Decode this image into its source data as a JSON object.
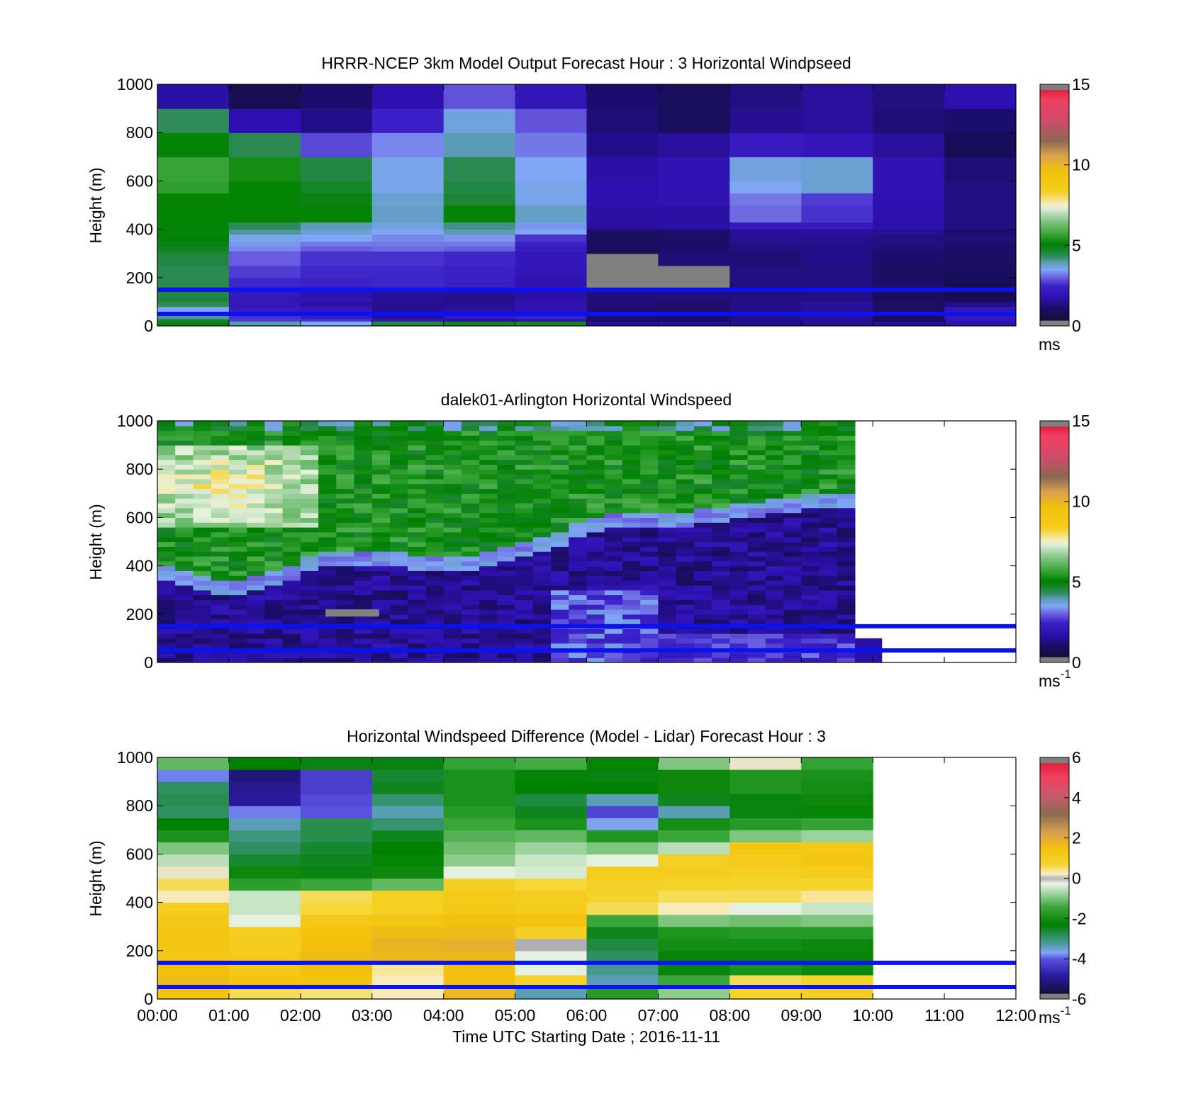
{
  "figure": {
    "xlabel": "Time UTC  Starting Date ; 2016-11-11",
    "x_ticks": [
      "00:00",
      "01:00",
      "02:00",
      "03:00",
      "04:00",
      "05:00",
      "06:00",
      "07:00",
      "08:00",
      "09:00",
      "10:00",
      "11:00",
      "12:00"
    ]
  },
  "chart_data": [
    {
      "type": "heatmap",
      "title": "HRRR-NCEP 3km Model Output   Forecast Hour : 3 Horizontal Windpseed",
      "ylabel": "Height (m)",
      "y_ticks": [
        "0",
        "200",
        "400",
        "600",
        "800",
        "1000"
      ],
      "ylim": [
        0,
        1000
      ],
      "xlim_hours": [
        0,
        12
      ],
      "colorbar": {
        "min": 0,
        "max": 15,
        "ticks": [
          "0",
          "5",
          "10",
          "15"
        ],
        "unit": "ms",
        "unit_sup": ""
      },
      "reference_lines_m": [
        150,
        50
      ],
      "x_hours": [
        0,
        1,
        2,
        3,
        4,
        5,
        6,
        7,
        8,
        9,
        10,
        11,
        12
      ],
      "y_levels_m": [
        0,
        20,
        30,
        50,
        80,
        100,
        120,
        150,
        200,
        250,
        300,
        310,
        330,
        350,
        380,
        400,
        430,
        500,
        550,
        600,
        700,
        800,
        900,
        1000
      ],
      "values": [
        [
          5.0,
          3.8,
          3.3,
          4.4,
          4.7,
          4.6,
          1.3,
          1.3,
          1.2,
          1.2,
          1.3,
          1.5
        ],
        [
          4.5,
          2.5,
          2.4,
          1.8,
          1.4,
          1.6,
          0.8,
          0.8,
          1.1,
          1.2,
          0.5,
          1.7
        ],
        [
          3.9,
          2.4,
          2.0,
          1.2,
          1.9,
          2.2,
          0.8,
          0.8,
          1.1,
          1.3,
          0.5,
          1.9
        ],
        [
          3.3,
          2.0,
          1.8,
          1.2,
          1.4,
          1.6,
          0.8,
          0.8,
          1.1,
          1.2,
          0.7,
          1.8
        ],
        [
          4.2,
          1.8,
          1.4,
          1.2,
          1.2,
          1.6,
          0.9,
          0.8,
          1.1,
          1.3,
          0.7,
          1.1
        ],
        [
          4.5,
          1.8,
          1.7,
          1.2,
          1.1,
          1.4,
          0.9,
          0.9,
          1.0,
          1.1,
          0.6,
          0.6
        ],
        [
          4.4,
          1.9,
          1.5,
          1.3,
          1.2,
          1.4,
          1.0,
          1.0,
          1.0,
          1.1,
          0.6,
          0.3
        ],
        [
          4.3,
          2.3,
          2.2,
          2.3,
          2.1,
          1.6,
          0.0,
          0.0,
          1.0,
          1.0,
          0.8,
          0.5
        ],
        [
          4.3,
          2.5,
          2.3,
          2.3,
          2.2,
          1.7,
          0.0,
          0.0,
          1.0,
          1.0,
          0.7,
          0.6
        ],
        [
          4.4,
          2.8,
          2.4,
          2.4,
          2.3,
          1.8,
          0.0,
          0.9,
          0.9,
          1.1,
          0.8,
          0.7
        ],
        [
          4.5,
          2.8,
          2.4,
          2.4,
          2.3,
          1.8,
          0.4,
          0.9,
          0.9,
          1.1,
          0.8,
          0.7
        ],
        [
          4.7,
          3.1,
          2.8,
          2.9,
          2.8,
          2.0,
          0.6,
          0.8,
          1.0,
          1.1,
          0.9,
          0.8
        ],
        [
          4.8,
          3.2,
          3.0,
          3.0,
          3.0,
          2.2,
          0.7,
          0.7,
          1.1,
          1.1,
          1.0,
          0.8
        ],
        [
          4.9,
          3.4,
          3.3,
          3.1,
          3.2,
          2.4,
          0.6,
          0.7,
          1.2,
          1.2,
          1.0,
          0.9
        ],
        [
          5.0,
          3.9,
          3.6,
          3.3,
          3.8,
          3.3,
          0.7,
          0.8,
          1.2,
          1.3,
          1.2,
          0.8
        ],
        [
          5.0,
          4.2,
          3.8,
          3.5,
          4.0,
          3.2,
          1.3,
          1.4,
          1.9,
          2.0,
          1.4,
          1.0
        ],
        [
          5.0,
          5.0,
          5.0,
          3.7,
          5.0,
          3.7,
          1.4,
          1.4,
          2.9,
          2.4,
          1.5,
          1.0
        ],
        [
          5.0,
          5.0,
          4.8,
          3.6,
          4.5,
          3.4,
          1.5,
          1.6,
          3.0,
          2.5,
          1.5,
          1.0
        ],
        [
          5.5,
          5.0,
          4.6,
          3.4,
          4.4,
          3.4,
          1.5,
          1.6,
          3.3,
          3.6,
          1.6,
          1.0
        ],
        [
          5.6,
          5.2,
          4.4,
          3.4,
          4.3,
          3.3,
          1.4,
          1.6,
          3.5,
          3.6,
          1.6,
          0.9
        ],
        [
          5.0,
          4.3,
          2.6,
          3.1,
          3.8,
          3.0,
          1.1,
          1.3,
          2.0,
          1.8,
          1.3,
          0.5
        ],
        [
          4.2,
          1.5,
          1.1,
          2.2,
          3.5,
          2.7,
          0.9,
          0.6,
          1.2,
          1.3,
          0.9,
          0.8
        ],
        [
          1.4,
          0.4,
          0.8,
          1.5,
          2.7,
          1.7,
          0.8,
          0.6,
          1.0,
          1.3,
          1.0,
          1.5
        ]
      ]
    },
    {
      "type": "heatmap",
      "title": "dalek01-Arlington  Horizontal Windspeed",
      "ylabel": "Height (m)",
      "y_ticks": [
        "0",
        "200",
        "400",
        "600",
        "800",
        "1000"
      ],
      "ylim": [
        0,
        1000
      ],
      "xlim_hours": [
        0,
        12
      ],
      "colorbar": {
        "min": 0,
        "max": 15,
        "ticks": [
          "0",
          "5",
          "10",
          "15"
        ],
        "unit": "ms",
        "unit_sup": "-1"
      },
      "reference_lines_m": [
        150,
        50
      ],
      "data_end_hours": 9.75,
      "boundary_x_hours": [
        0.0,
        0.5,
        1.0,
        1.5,
        2.0,
        2.5,
        3.0,
        3.5,
        4.0,
        4.5,
        5.0,
        5.5,
        6.0,
        6.5,
        7.0,
        7.5,
        8.0,
        8.5,
        9.0,
        9.5
      ],
      "boundary_y_m": [
        380,
        320,
        290,
        330,
        380,
        420,
        420,
        410,
        400,
        410,
        440,
        490,
        560,
        590,
        580,
        590,
        610,
        630,
        650,
        650
      ],
      "colorbar_levels": [
        0,
        1,
        2,
        3,
        4,
        5,
        6,
        7,
        8,
        10,
        12,
        14,
        15
      ]
    },
    {
      "type": "heatmap",
      "title": "Horizontal Windspeed Difference (Model - Lidar) Forecast Hour : 3",
      "ylabel": "Height (m)",
      "y_ticks": [
        "0",
        "200",
        "400",
        "600",
        "800",
        "1000"
      ],
      "ylim": [
        0,
        1000
      ],
      "xlim_hours": [
        0,
        12
      ],
      "colorbar": {
        "min": -6,
        "max": 6,
        "ticks": [
          "-6",
          "-4",
          "-2",
          "0",
          "2",
          "4",
          "6"
        ],
        "unit": "ms",
        "unit_sup": "-1"
      },
      "reference_lines_m": [
        150,
        50
      ],
      "x_hours": [
        0,
        1,
        2,
        3,
        4,
        5,
        6,
        7,
        8,
        9,
        10
      ],
      "y_levels_m": [
        0,
        50,
        100,
        150,
        200,
        250,
        300,
        350,
        400,
        450,
        500,
        550,
        600,
        650,
        700,
        750,
        800,
        850,
        900,
        950,
        1000
      ],
      "values": [
        [
          1.5,
          0.6,
          0.5,
          0.3,
          1.8,
          -3.5,
          -1.8,
          -0.9,
          0.8,
          1.0
        ],
        [
          1.7,
          1.5,
          1.5,
          0.3,
          1.6,
          0.8,
          -3.5,
          -1.5,
          0.6,
          0.8
        ],
        [
          1.6,
          1.3,
          1.6,
          0.4,
          1.6,
          -0.3,
          -3.3,
          -2.5,
          -2.0,
          -2.2
        ],
        [
          1.3,
          1.2,
          1.7,
          1.8,
          1.8,
          -0.3,
          -3.0,
          -2.3,
          -2.3,
          -2.3
        ],
        [
          1.4,
          1.2,
          1.6,
          1.9,
          2.0,
          0.0,
          -2.8,
          -2.1,
          -2.1,
          -2.2
        ],
        [
          1.4,
          1.1,
          1.5,
          1.7,
          1.7,
          1.0,
          -2.6,
          -1.9,
          -1.8,
          -1.8
        ],
        [
          1.3,
          -0.3,
          1.3,
          1.4,
          1.6,
          1.5,
          -1.5,
          -1.0,
          -1.1,
          -1.0
        ],
        [
          1.1,
          -0.5,
          0.7,
          1.0,
          1.3,
          1.2,
          0.6,
          0.3,
          -0.3,
          -0.5
        ],
        [
          0.3,
          -0.5,
          0.6,
          1.0,
          1.2,
          1.1,
          0.9,
          0.6,
          0.6,
          0.4
        ],
        [
          0.6,
          -1.7,
          -1.5,
          -1.2,
          1.0,
          0.7,
          1.0,
          0.9,
          0.8,
          0.8
        ],
        [
          0.2,
          -2.2,
          -2.5,
          -2.2,
          -0.3,
          -0.4,
          1.1,
          1.1,
          1.0,
          1.2
        ],
        [
          -0.6,
          -2.7,
          -2.6,
          -2.3,
          -0.9,
          -0.5,
          -0.3,
          1.0,
          1.2,
          1.4
        ],
        [
          -1.0,
          -3.0,
          -2.7,
          -2.4,
          -1.1,
          -0.8,
          -1.0,
          -0.6,
          1.4,
          1.3
        ],
        [
          -2.0,
          -3.2,
          -2.9,
          -2.6,
          -1.3,
          -1.2,
          -1.9,
          -1.5,
          -1.0,
          -0.8
        ],
        [
          -2.4,
          -3.5,
          -2.9,
          -3.1,
          -1.5,
          -2.0,
          -3.8,
          -2.1,
          -1.8,
          -1.6
        ],
        [
          -3.0,
          -4.0,
          -4.2,
          -3.5,
          -1.8,
          -2.6,
          -4.4,
          -3.5,
          -2.5,
          -2.3
        ],
        [
          -2.9,
          -5.1,
          -4.3,
          -3.1,
          -2.0,
          -2.8,
          -3.5,
          -2.6,
          -2.5,
          -2.2
        ],
        [
          -3.0,
          -5.2,
          -4.5,
          -2.6,
          -2.0,
          -2.4,
          -2.4,
          -2.2,
          -1.9,
          -2.1
        ],
        [
          -4.0,
          -5.4,
          -4.5,
          -2.7,
          -2.0,
          -2.3,
          -2.5,
          -2.2,
          -1.9,
          -2.0
        ],
        [
          -1.2,
          -2.4,
          -2.5,
          -2.5,
          -1.6,
          -1.4,
          -2.3,
          -1.0,
          0.2,
          -1.6
        ]
      ]
    }
  ]
}
